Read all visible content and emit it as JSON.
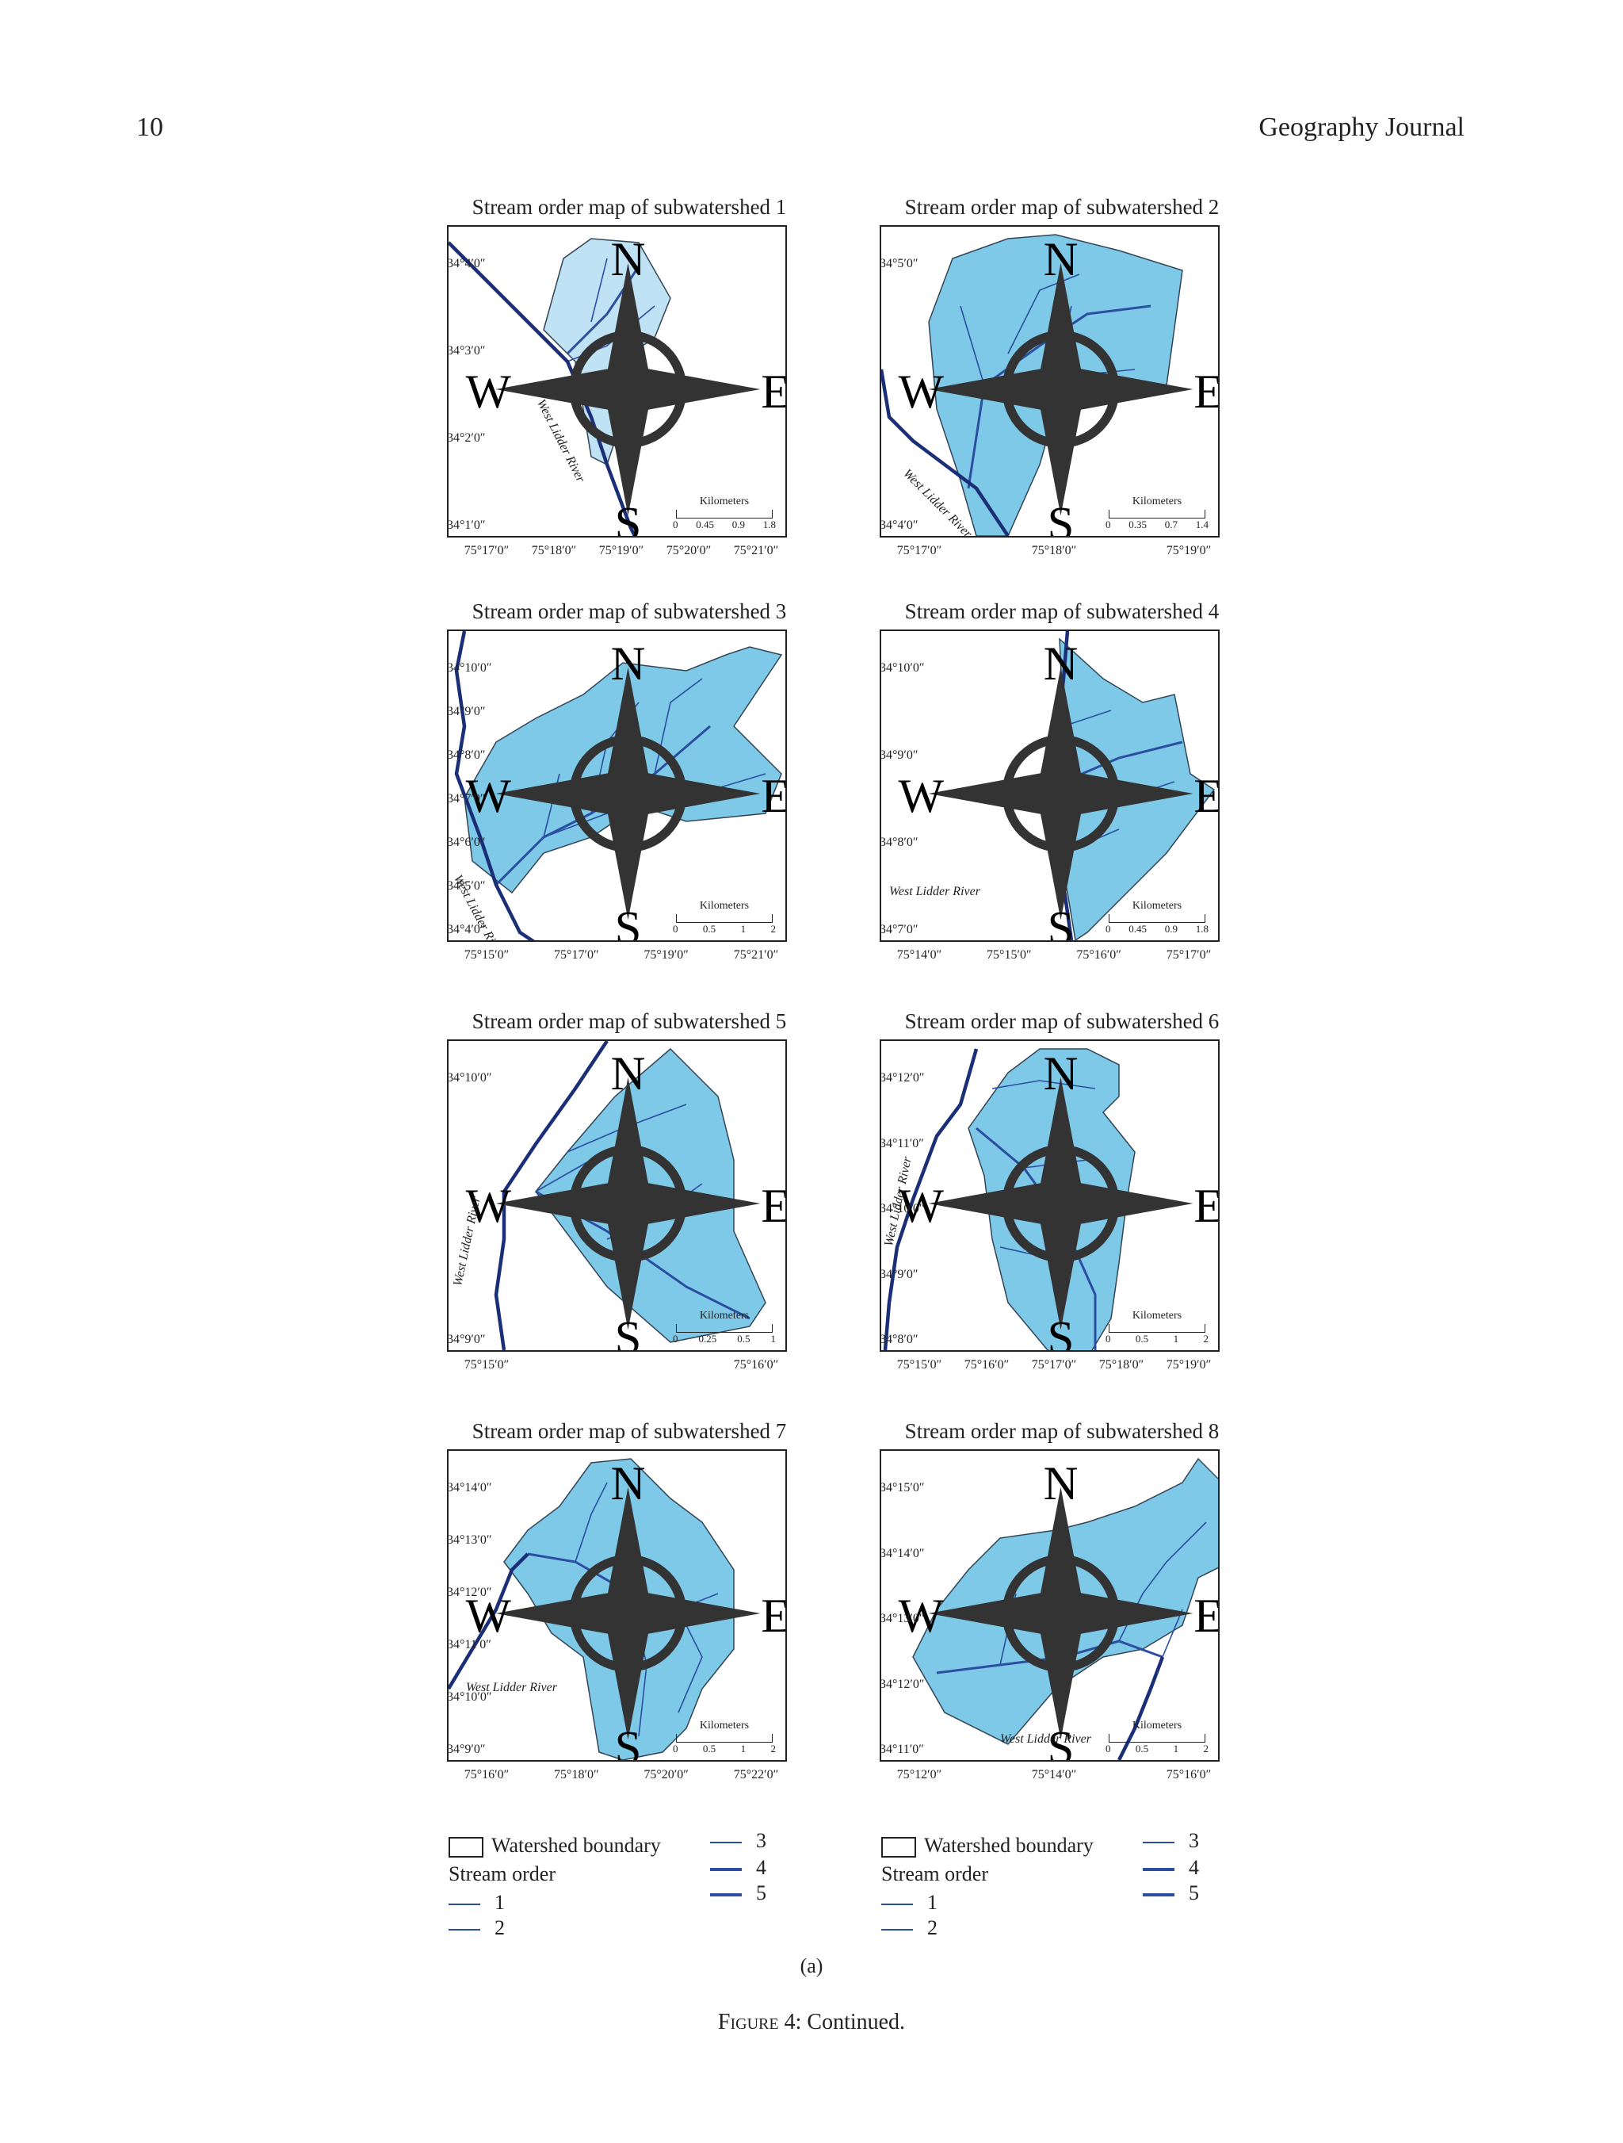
{
  "header": {
    "page_number": "10",
    "journal": "Geography Journal"
  },
  "maps": [
    {
      "title": "Stream order map of subwatershed 1",
      "lats": [
        "34°4′0″",
        "34°3′0″",
        "34°2′0″",
        "34°1′0″"
      ],
      "lons": [
        "75°17′0″",
        "75°18′0″",
        "75°19′0″",
        "75°20′0″",
        "75°21′0″"
      ],
      "river_label": "West Lidder River",
      "scale_title": "Kilometers",
      "scale_ticks": [
        "0",
        "0.45",
        "0.9",
        "1.8"
      ]
    },
    {
      "title": "Stream order map of subwatershed 2",
      "lats": [
        "34°5′0″",
        "34°4′0″"
      ],
      "lons": [
        "75°17′0″",
        "75°18′0″",
        "75°19′0″"
      ],
      "river_label": "West Lidder River",
      "scale_title": "Kilometers",
      "scale_ticks": [
        "0",
        "0.35",
        "0.7",
        "1.4"
      ]
    },
    {
      "title": "Stream order map of subwatershed 3",
      "lats": [
        "34°10′0″",
        "34°9′0″",
        "34°8′0″",
        "34°7′0″",
        "34°6′0″",
        "34°5′0″",
        "34°4′0″"
      ],
      "lons": [
        "75°15′0″",
        "75°17′0″",
        "75°19′0″",
        "75°21′0″"
      ],
      "river_label": "West Lidder River",
      "scale_title": "Kilometers",
      "scale_ticks": [
        "0",
        "0.5",
        "1",
        "2"
      ]
    },
    {
      "title": "Stream order map of subwatershed 4",
      "lats": [
        "34°10′0″",
        "34°9′0″",
        "34°8′0″",
        "34°7′0″"
      ],
      "lons": [
        "75°14′0″",
        "75°15′0″",
        "75°16′0″",
        "75°17′0″"
      ],
      "river_label": "West Lidder River",
      "scale_title": "Kilometers",
      "scale_ticks": [
        "0",
        "0.45",
        "0.9",
        "1.8"
      ]
    },
    {
      "title": "Stream order map of subwatershed 5",
      "lats": [
        "34°10′0″",
        "34°9′0″"
      ],
      "lons": [
        "75°15′0″",
        "75°16′0″"
      ],
      "river_label": "West Lidder River",
      "scale_title": "Kilometers",
      "scale_ticks": [
        "0",
        "0.25",
        "0.5",
        "1"
      ]
    },
    {
      "title": "Stream order map of subwatershed 6",
      "lats": [
        "34°12′0″",
        "34°11′0″",
        "34°10′0″",
        "34°9′0″",
        "34°8′0″"
      ],
      "lons": [
        "75°15′0″",
        "75°16′0″",
        "75°17′0″",
        "75°18′0″",
        "75°19′0″"
      ],
      "river_label": "West Lidder River",
      "scale_title": "Kilometers",
      "scale_ticks": [
        "0",
        "0.5",
        "1",
        "2"
      ]
    },
    {
      "title": "Stream order map of subwatershed 7",
      "lats": [
        "34°14′0″",
        "34°13′0″",
        "34°12′0″",
        "34°11′0″",
        "34°10′0″",
        "34°9′0″"
      ],
      "lons": [
        "75°16′0″",
        "75°18′0″",
        "75°20′0″",
        "75°22′0″"
      ],
      "river_label": "West Lidder River",
      "scale_title": "Kilometers",
      "scale_ticks": [
        "0",
        "0.5",
        "1",
        "2"
      ]
    },
    {
      "title": "Stream order map of subwatershed 8",
      "lats": [
        "34°15′0″",
        "34°14′0″",
        "34°13′0″",
        "34°12′0″",
        "34°11′0″"
      ],
      "lons": [
        "75°12′0″",
        "75°14′0″",
        "75°16′0″"
      ],
      "river_label": "West Lidder River",
      "scale_title": "Kilometers",
      "scale_ticks": [
        "0",
        "0.5",
        "1",
        "2"
      ]
    }
  ],
  "compass": {
    "n": "N",
    "s": "S",
    "e": "E",
    "w": "W"
  },
  "legend": {
    "boundary": "Watershed boundary",
    "stream_order": "Stream order",
    "orders": [
      "1",
      "2",
      "3",
      "4",
      "5"
    ]
  },
  "colors": {
    "watershed_fill": "#7ec8e8",
    "watershed_fill_light": "#bfe2f5",
    "stream": "#2b4ea0",
    "river": "#1b2f78"
  },
  "subfigure": "(a)",
  "caption": {
    "label": "Figure 4",
    "text": ": Continued."
  }
}
